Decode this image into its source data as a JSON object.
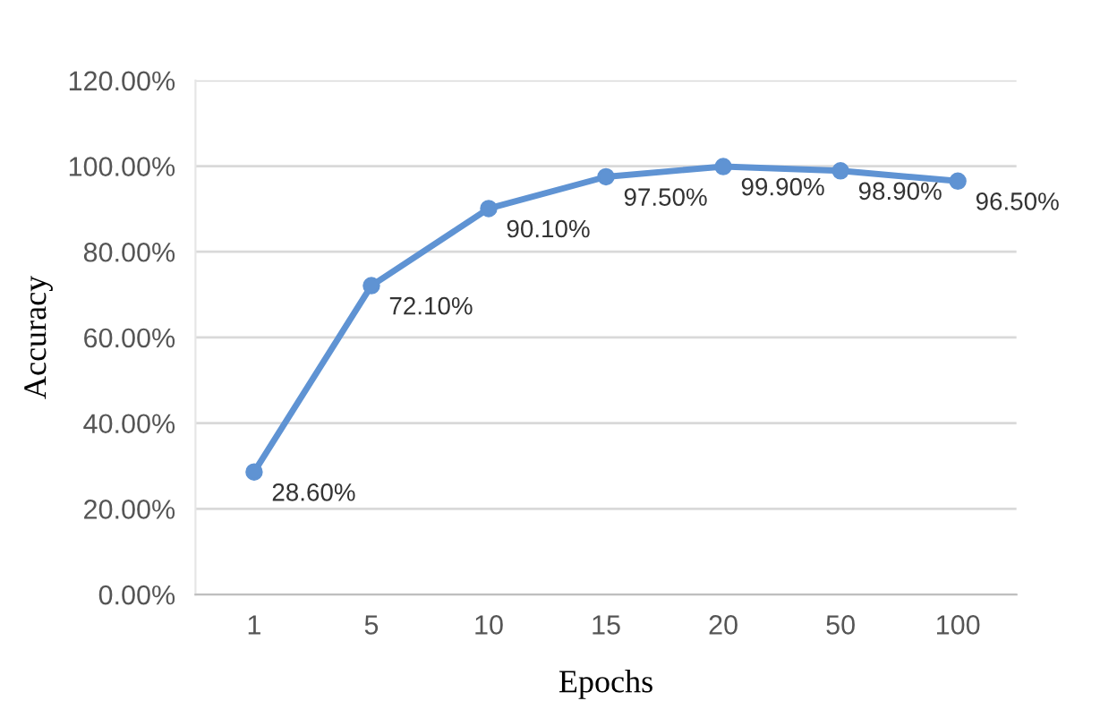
{
  "chart_data": {
    "type": "line",
    "xlabel": "Epochs",
    "ylabel": "Accuracy",
    "categories": [
      "1",
      "5",
      "10",
      "15",
      "20",
      "50",
      "100"
    ],
    "series": [
      {
        "color": "#5f93d3",
        "values": [
          28.6,
          72.1,
          90.1,
          97.5,
          99.9,
          98.9,
          96.5
        ],
        "value_labels": [
          "28.60%",
          "72.10%",
          "90.10%",
          "97.50%",
          "99.90%",
          "98.90%",
          "96.50%"
        ]
      }
    ],
    "ylim": [
      0,
      120
    ],
    "yticks": [
      {
        "value": 0,
        "label": "0.00%"
      },
      {
        "value": 20,
        "label": "20.00%"
      },
      {
        "value": 40,
        "label": "40.00%"
      },
      {
        "value": 60,
        "label": "60.00%"
      },
      {
        "value": 80,
        "label": "80.00%"
      },
      {
        "value": 100,
        "label": "100.00%"
      },
      {
        "value": 120,
        "label": "120.00%"
      }
    ],
    "grid": "y",
    "marker": "circle",
    "line_style": "solid",
    "legend": false
  }
}
